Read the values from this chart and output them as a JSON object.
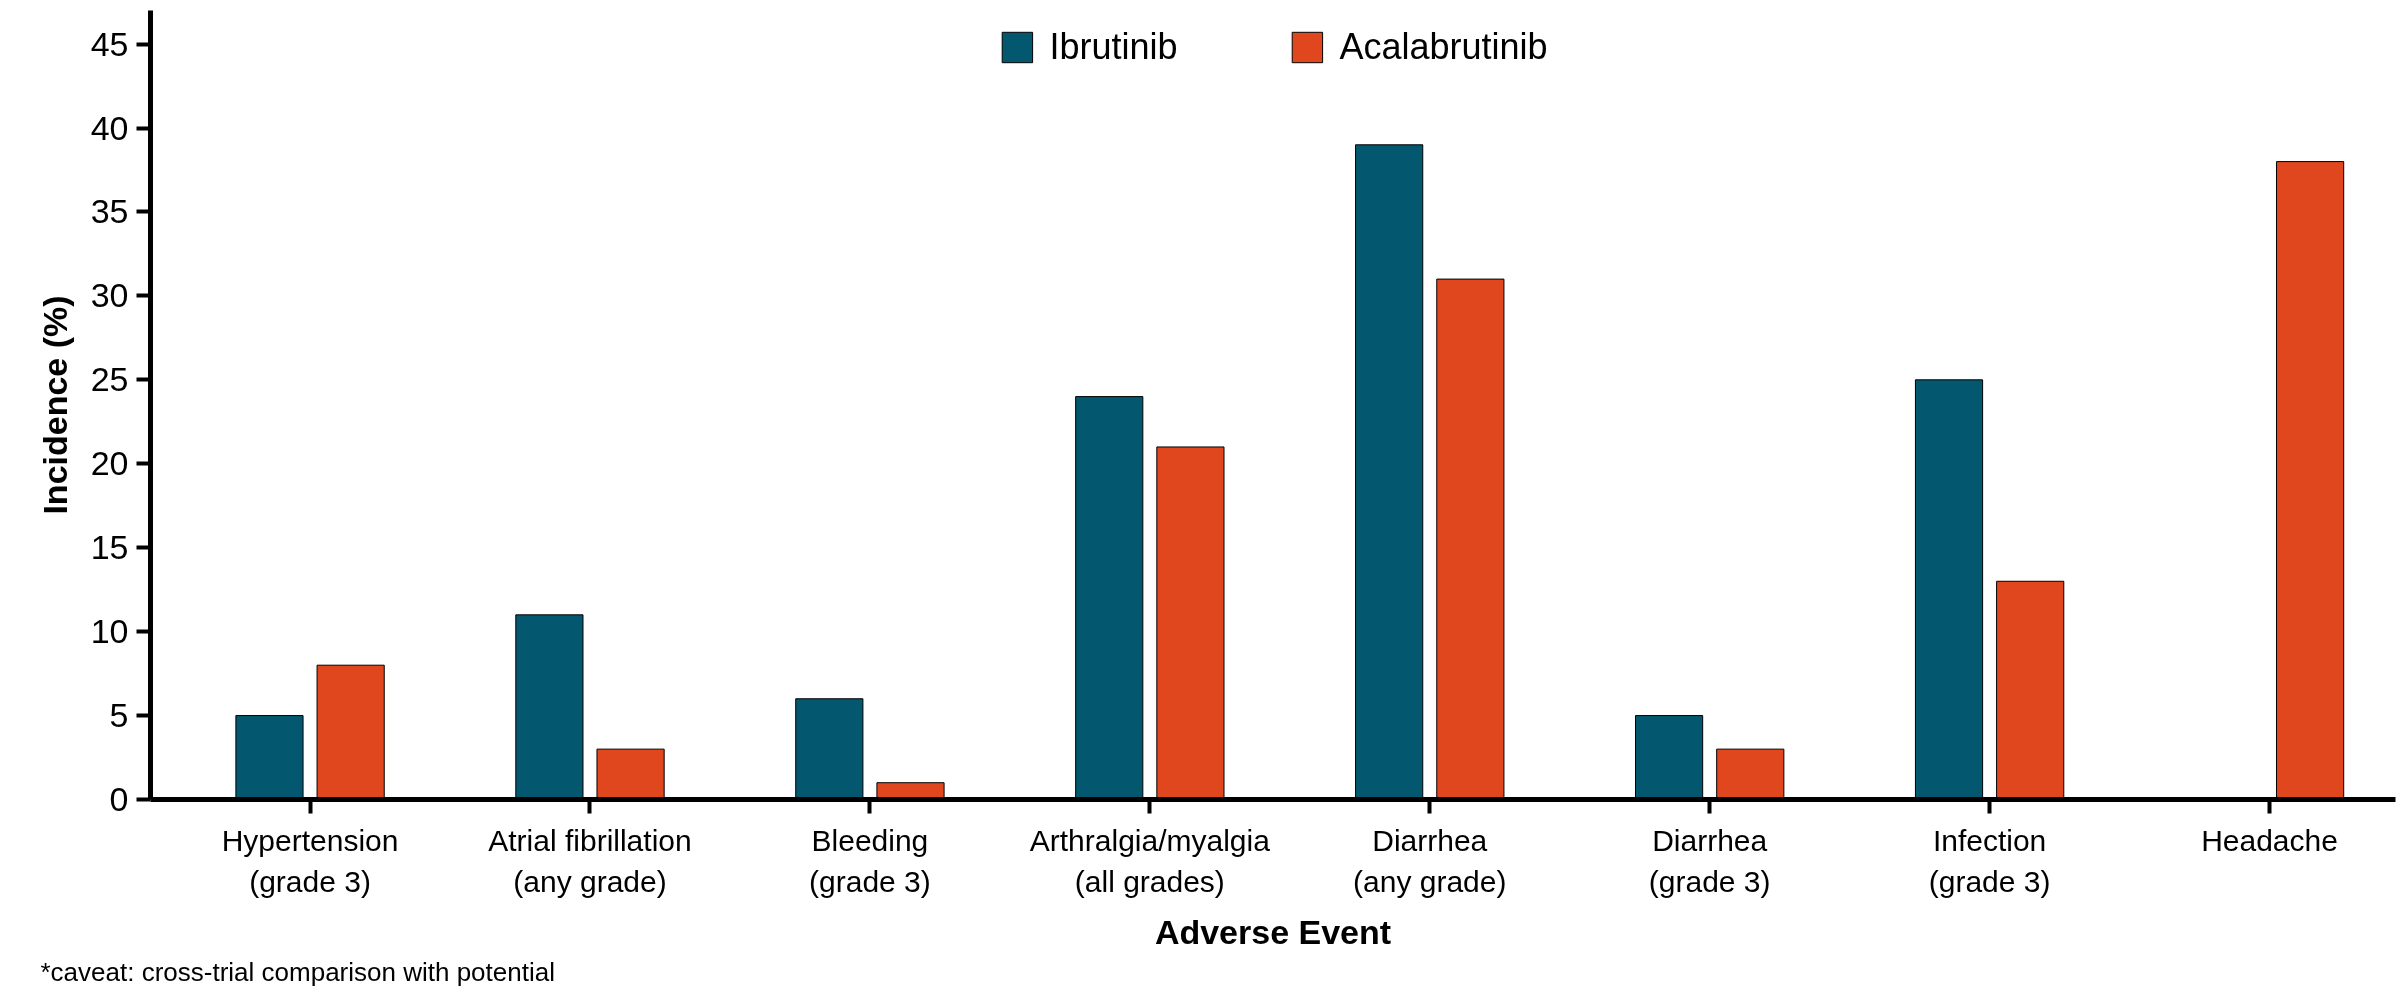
{
  "chart_data": {
    "type": "bar",
    "categories": [
      "Hypertension\n(grade 3)",
      "Atrial fibrillation\n(any grade)",
      "Bleeding\n(grade 3)",
      "Arthralgia/myalgia\n(all grades)",
      "Diarrhea\n(any grade)",
      "Diarrhea\n(grade 3)",
      "Infection\n(grade 3)",
      "Headache"
    ],
    "series": [
      {
        "name": "Ibrutinib",
        "color": "#03586f",
        "values": [
          5,
          11,
          6,
          24,
          39,
          5,
          25,
          null
        ]
      },
      {
        "name": "Acalabrutinib",
        "color": "#e0471f",
        "values": [
          8,
          3,
          1,
          21,
          31,
          3,
          13,
          38
        ]
      }
    ],
    "xlabel": "Adverse Event",
    "ylabel": "Incidence (%)",
    "ylim": [
      0,
      47
    ],
    "yticks": [
      0,
      5,
      10,
      15,
      20,
      25,
      30,
      35,
      40,
      45
    ],
    "legend": "top",
    "annotations": [
      "*caveat: cross-trial comparison with potential"
    ]
  }
}
